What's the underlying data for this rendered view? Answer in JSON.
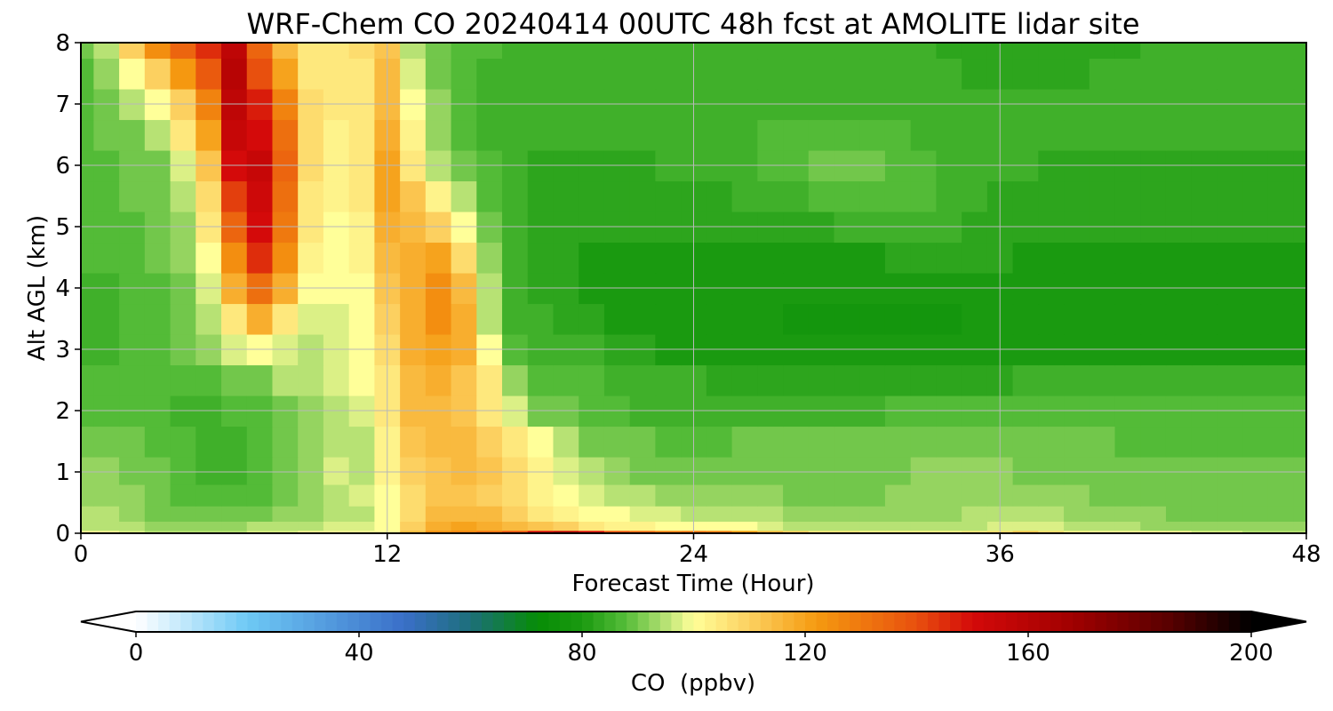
{
  "chart_data": {
    "type": "heatmap",
    "title": "WRF-Chem CO  20240414 00UTC 48h fcst at AMOLITE lidar site",
    "xlabel": "Forecast Time (Hour)",
    "ylabel": "Alt AGL (km)",
    "xlim": [
      0,
      48
    ],
    "ylim": [
      0,
      8
    ],
    "x_ticks": [
      0,
      12,
      24,
      36,
      48
    ],
    "y_ticks": [
      0,
      1,
      2,
      3,
      4,
      5,
      6,
      7,
      8
    ],
    "grid": true,
    "colorbar": {
      "label": "CO  (ppbv)",
      "min": 0,
      "max": 200,
      "ticks": [
        0,
        40,
        80,
        120,
        160,
        200
      ],
      "extend": "both",
      "color_stops": [
        {
          "value": 0,
          "color": "#ffffff"
        },
        {
          "value": 20,
          "color": "#6ec9f5"
        },
        {
          "value": 48,
          "color": "#3a6fc8"
        },
        {
          "value": 60,
          "color": "#1d6f7a"
        },
        {
          "value": 72,
          "color": "#068c06"
        },
        {
          "value": 80,
          "color": "#1a9a10"
        },
        {
          "value": 88,
          "color": "#57bd3a"
        },
        {
          "value": 94,
          "color": "#a9dc6c"
        },
        {
          "value": 100,
          "color": "#ffff99"
        },
        {
          "value": 110,
          "color": "#fcd060"
        },
        {
          "value": 122,
          "color": "#f59a10"
        },
        {
          "value": 140,
          "color": "#e8500e"
        },
        {
          "value": 150,
          "color": "#d40a0a"
        },
        {
          "value": 168,
          "color": "#a00000"
        },
        {
          "value": 185,
          "color": "#5a0000"
        },
        {
          "value": 200,
          "color": "#000000"
        }
      ]
    },
    "x": [
      0,
      1,
      2,
      3,
      4,
      5,
      6,
      7,
      8,
      9,
      10,
      11,
      12,
      13,
      14,
      15,
      16,
      17,
      18,
      19,
      20,
      21,
      22,
      23,
      24,
      25,
      26,
      27,
      28,
      29,
      30,
      31,
      32,
      33,
      34,
      35,
      36,
      37,
      38,
      39,
      40,
      41,
      42,
      43,
      44,
      45,
      46,
      47,
      48
    ],
    "y": [
      0,
      0.1,
      0.3,
      0.6,
      1,
      1.5,
      2,
      2.5,
      3,
      3.5,
      4,
      4.5,
      5,
      5.5,
      6,
      6.5,
      7,
      7.5,
      8
    ],
    "values": [
      [
        100,
        100,
        98,
        96,
        95,
        95,
        96,
        97,
        98,
        99,
        100,
        100,
        100,
        115,
        125,
        128,
        132,
        140,
        152,
        160,
        150,
        140,
        135,
        130,
        133,
        130,
        122,
        115,
        110,
        106,
        104,
        103,
        103,
        103,
        103,
        104,
        108,
        112,
        108,
        103,
        101,
        100,
        100,
        99,
        98,
        97,
        96,
        95,
        95
      ],
      [
        96,
        95,
        94,
        93,
        92,
        92,
        93,
        94,
        95,
        96,
        97,
        98,
        100,
        110,
        118,
        120,
        118,
        115,
        112,
        110,
        106,
        103,
        102,
        101,
        100,
        100,
        99,
        98,
        96,
        95,
        94,
        94,
        94,
        94,
        94,
        95,
        97,
        98,
        97,
        95,
        94,
        94,
        93,
        93,
        92,
        92,
        92,
        92,
        92
      ],
      [
        94,
        94,
        93,
        91,
        90,
        89,
        90,
        91,
        92,
        93,
        94,
        96,
        99,
        108,
        114,
        116,
        114,
        110,
        106,
        103,
        101,
        99,
        98,
        97,
        96,
        96,
        95,
        94,
        93,
        92,
        92,
        92,
        92,
        92,
        93,
        94,
        95,
        95,
        94,
        93,
        93,
        92,
        92,
        91,
        91,
        91,
        91,
        91,
        91
      ],
      [
        93,
        93,
        92,
        90,
        88,
        87,
        87,
        88,
        90,
        92,
        96,
        98,
        100,
        108,
        112,
        113,
        111,
        107,
        103,
        99,
        97,
        95,
        94,
        93,
        93,
        92,
        92,
        92,
        91,
        91,
        91,
        91,
        92,
        92,
        93,
        93,
        93,
        92,
        92,
        92,
        91,
        91,
        90,
        90,
        90,
        90,
        90,
        90,
        90
      ],
      [
        92,
        92,
        91,
        89,
        87,
        86,
        86,
        87,
        89,
        92,
        98,
        96,
        102,
        110,
        113,
        114,
        112,
        108,
        102,
        97,
        94,
        92,
        91,
        90,
        90,
        90,
        90,
        91,
        91,
        90,
        90,
        90,
        91,
        92,
        92,
        92,
        92,
        91,
        91,
        90,
        90,
        90,
        89,
        89,
        89,
        89,
        89,
        89,
        89
      ],
      [
        91,
        91,
        90,
        88,
        87,
        86,
        86,
        87,
        90,
        93,
        95,
        96,
        103,
        112,
        114,
        114,
        111,
        106,
        99,
        94,
        91,
        90,
        89,
        88,
        88,
        88,
        89,
        89,
        89,
        89,
        89,
        89,
        90,
        90,
        90,
        90,
        90,
        89,
        89,
        89,
        89,
        88,
        88,
        88,
        88,
        88,
        88,
        88,
        88
      ],
      [
        88,
        88,
        88,
        87,
        86,
        86,
        87,
        88,
        90,
        93,
        95,
        97,
        104,
        114,
        116,
        112,
        105,
        97,
        91,
        89,
        88,
        87,
        86,
        86,
        86,
        86,
        86,
        86,
        86,
        86,
        86,
        86,
        87,
        87,
        87,
        87,
        87,
        87,
        87,
        87,
        87,
        87,
        87,
        87,
        87,
        87,
        87,
        87,
        87
      ],
      [
        87,
        87,
        88,
        88,
        88,
        88,
        89,
        91,
        94,
        96,
        97,
        99,
        106,
        116,
        118,
        113,
        104,
        92,
        88,
        88,
        87,
        86,
        85,
        84,
        84,
        83,
        83,
        82,
        82,
        82,
        83,
        83,
        83,
        83,
        83,
        83,
        83,
        84,
        84,
        84,
        84,
        84,
        84,
        84,
        84,
        84,
        85,
        85,
        85
      ],
      [
        86,
        86,
        87,
        88,
        89,
        92,
        97,
        100,
        98,
        96,
        97,
        100,
        108,
        118,
        120,
        118,
        100,
        87,
        86,
        85,
        84,
        83,
        82,
        81,
        80,
        80,
        79,
        79,
        79,
        79,
        79,
        79,
        79,
        79,
        79,
        79,
        79,
        79,
        79,
        79,
        80,
        80,
        80,
        80,
        80,
        80,
        80,
        80,
        80
      ],
      [
        86,
        86,
        87,
        88,
        90,
        95,
        106,
        118,
        106,
        98,
        98,
        100,
        110,
        118,
        124,
        117,
        96,
        86,
        84,
        83,
        82,
        81,
        80,
        80,
        79,
        79,
        79,
        79,
        78,
        78,
        78,
        78,
        78,
        78,
        78,
        79,
        79,
        79,
        79,
        79,
        79,
        79,
        79,
        79,
        79,
        79,
        79,
        79,
        79
      ],
      [
        86,
        86,
        87,
        88,
        91,
        98,
        118,
        132,
        118,
        100,
        99,
        101,
        112,
        118,
        126,
        115,
        95,
        85,
        83,
        82,
        81,
        81,
        80,
        80,
        80,
        80,
        80,
        80,
        80,
        80,
        80,
        80,
        81,
        81,
        81,
        81,
        81,
        80,
        80,
        80,
        80,
        80,
        80,
        80,
        80,
        80,
        80,
        80,
        80
      ],
      [
        87,
        87,
        88,
        89,
        92,
        100,
        125,
        145,
        126,
        102,
        100,
        102,
        115,
        118,
        120,
        108,
        92,
        84,
        82,
        82,
        81,
        81,
        81,
        81,
        81,
        81,
        81,
        81,
        81,
        81,
        81,
        81,
        82,
        82,
        82,
        82,
        82,
        81,
        81,
        81,
        81,
        81,
        81,
        81,
        81,
        81,
        81,
        81,
        81
      ],
      [
        87,
        87,
        88,
        89,
        93,
        104,
        135,
        150,
        130,
        104,
        101,
        103,
        118,
        116,
        110,
        100,
        90,
        84,
        83,
        82,
        82,
        82,
        82,
        82,
        82,
        82,
        82,
        82,
        82,
        83,
        84,
        85,
        86,
        85,
        84,
        83,
        83,
        82,
        82,
        82,
        82,
        82,
        82,
        82,
        82,
        82,
        82,
        82,
        82
      ],
      [
        88,
        88,
        89,
        90,
        95,
        108,
        142,
        152,
        132,
        106,
        102,
        104,
        120,
        112,
        102,
        94,
        88,
        84,
        83,
        83,
        83,
        83,
        83,
        83,
        83,
        83,
        84,
        85,
        86,
        87,
        88,
        88,
        88,
        87,
        86,
        84,
        83,
        83,
        83,
        83,
        83,
        83,
        83,
        83,
        83,
        83,
        83,
        83,
        83
      ],
      [
        88,
        88,
        89,
        91,
        98,
        112,
        150,
        154,
        134,
        108,
        103,
        105,
        120,
        106,
        96,
        90,
        87,
        84,
        83,
        83,
        83,
        83,
        83,
        84,
        84,
        85,
        86,
        87,
        88,
        89,
        89,
        89,
        88,
        87,
        86,
        85,
        84,
        84,
        83,
        83,
        83,
        83,
        83,
        83,
        83,
        83,
        83,
        83,
        83
      ],
      [
        88,
        89,
        91,
        95,
        104,
        120,
        156,
        150,
        132,
        108,
        103,
        105,
        118,
        102,
        93,
        88,
        86,
        84,
        84,
        84,
        84,
        84,
        84,
        84,
        85,
        85,
        86,
        87,
        88,
        88,
        88,
        88,
        87,
        86,
        85,
        85,
        84,
        84,
        84,
        84,
        84,
        84,
        84,
        84,
        84,
        84,
        84,
        84,
        84
      ],
      [
        87,
        89,
        94,
        100,
        110,
        128,
        158,
        148,
        128,
        108,
        104,
        106,
        116,
        100,
        92,
        88,
        86,
        85,
        85,
        85,
        85,
        85,
        85,
        85,
        85,
        85,
        86,
        86,
        86,
        86,
        86,
        86,
        86,
        86,
        85,
        85,
        85,
        85,
        85,
        85,
        85,
        85,
        85,
        85,
        85,
        85,
        85,
        85,
        85
      ],
      [
        88,
        92,
        100,
        110,
        122,
        138,
        160,
        140,
        120,
        106,
        104,
        106,
        114,
        98,
        91,
        88,
        86,
        85,
        85,
        85,
        85,
        85,
        85,
        85,
        85,
        85,
        85,
        85,
        85,
        84,
        84,
        84,
        84,
        84,
        84,
        83,
        83,
        83,
        83,
        83,
        84,
        84,
        84,
        84,
        85,
        85,
        85,
        85,
        85
      ],
      [
        90,
        95,
        110,
        125,
        135,
        145,
        158,
        135,
        116,
        105,
        104,
        107,
        112,
        96,
        90,
        88,
        87,
        86,
        86,
        86,
        86,
        86,
        86,
        86,
        86,
        86,
        86,
        86,
        85,
        85,
        85,
        84,
        84,
        84,
        83,
        83,
        82,
        82,
        82,
        82,
        83,
        83,
        84,
        84,
        85,
        85,
        86,
        86,
        86
      ]
    ]
  }
}
